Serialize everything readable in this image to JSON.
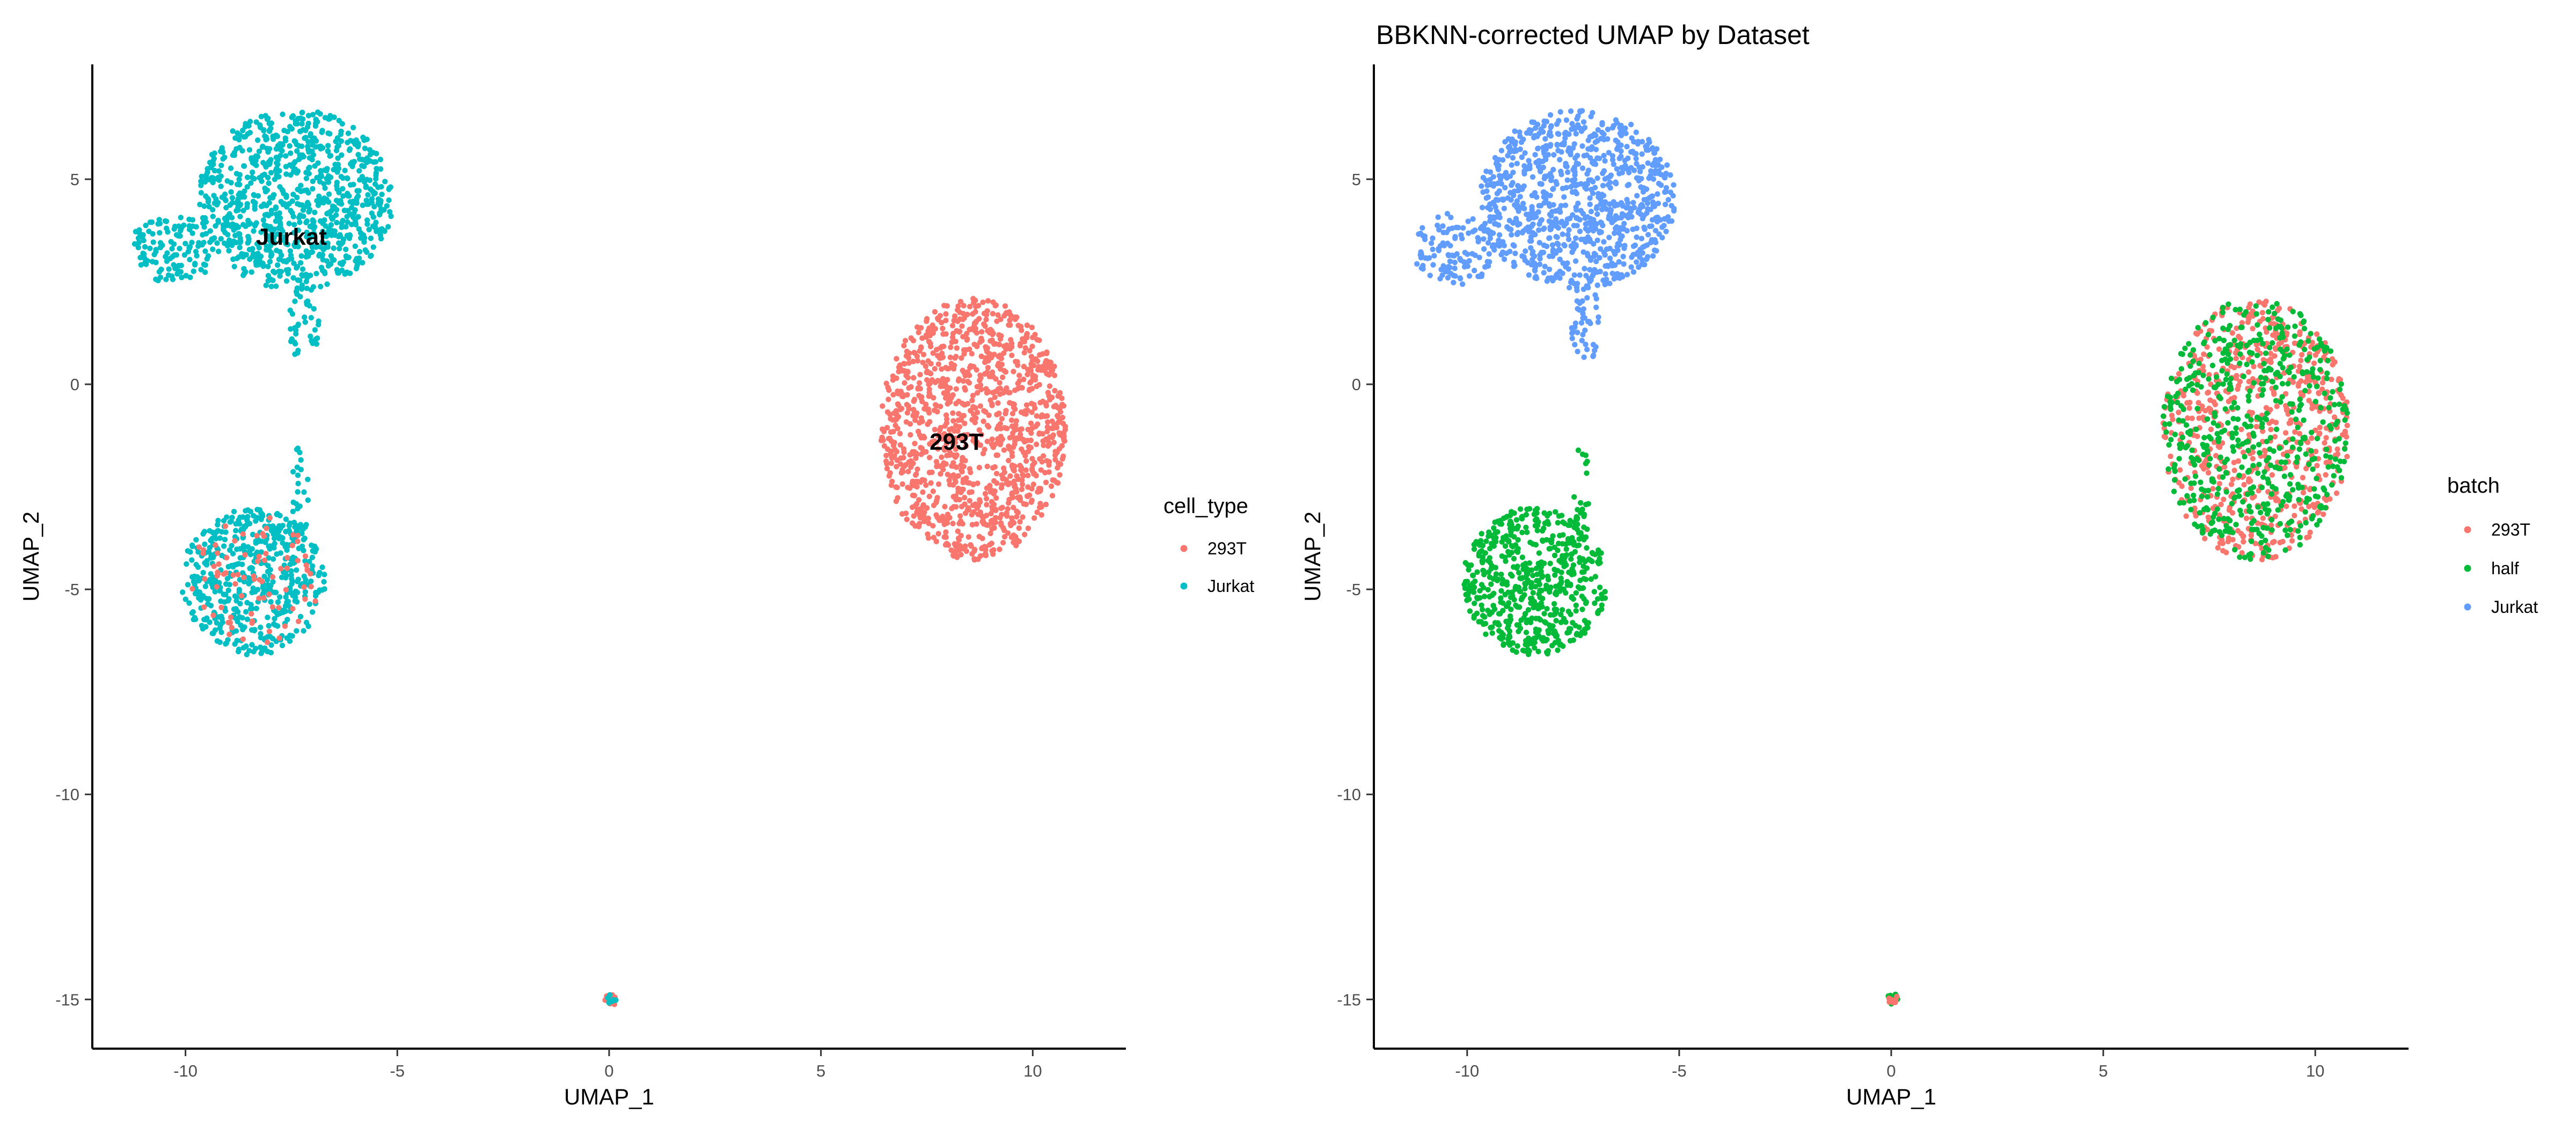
{
  "chart_data": [
    {
      "type": "scatter",
      "title": "",
      "xlabel": "UMAP_1",
      "ylabel": "UMAP_2",
      "xlim": [
        -12.2,
        12.2
      ],
      "ylim": [
        -16.2,
        7.8
      ],
      "xticks": [
        -10,
        -5,
        0,
        5,
        10
      ],
      "yticks": [
        -15,
        -10,
        -5,
        0,
        5
      ],
      "grid": false,
      "legend": {
        "title": "cell_type",
        "placement": "right",
        "entries": [
          {
            "label": "293T",
            "color": "#F8766D"
          },
          {
            "label": "Jurkat",
            "color": "#00BFC4"
          }
        ]
      },
      "cluster_labels": [
        {
          "text": "Jurkat",
          "x": -7.5,
          "y": 3.6
        },
        {
          "text": "293T",
          "x": 8.2,
          "y": -1.4
        }
      ],
      "clusters": [
        {
          "series": "Jurkat",
          "center": [
            -7.4,
            4.5
          ],
          "radius": [
            2.3,
            2.2
          ],
          "count": 900
        },
        {
          "series": "Jurkat",
          "center": [
            -10.3,
            3.3
          ],
          "radius": [
            1.0,
            0.9
          ],
          "count": 120
        },
        {
          "series": "Jurkat",
          "center": [
            -7.2,
            1.5
          ],
          "radius": [
            0.35,
            1.0
          ],
          "count": 40
        },
        {
          "series": "Jurkat",
          "center": [
            -8.4,
            -4.8
          ],
          "radius": [
            1.7,
            1.8
          ],
          "count": 500
        },
        {
          "series": "293T",
          "center": [
            -8.4,
            -4.8
          ],
          "radius": [
            1.6,
            1.7
          ],
          "count": 80
        },
        {
          "series": "Jurkat",
          "center": [
            -7.3,
            -2.8
          ],
          "radius": [
            0.2,
            1.3
          ],
          "count": 25
        },
        {
          "series": "293T",
          "center": [
            8.6,
            -1.1
          ],
          "radius": [
            2.2,
            3.2
          ],
          "count": 1200
        },
        {
          "series": "293T",
          "center": [
            0.05,
            -15.0
          ],
          "radius": [
            0.15,
            0.15
          ],
          "count": 15
        },
        {
          "series": "Jurkat",
          "center": [
            0.05,
            -15.0
          ],
          "radius": [
            0.12,
            0.12
          ],
          "count": 6
        }
      ]
    },
    {
      "type": "scatter",
      "title": "BBKNN-corrected UMAP by Dataset",
      "xlabel": "UMAP_1",
      "ylabel": "UMAP_2",
      "xlim": [
        -12.2,
        12.2
      ],
      "ylim": [
        -16.2,
        7.8
      ],
      "xticks": [
        -10,
        -5,
        0,
        5,
        10
      ],
      "yticks": [
        -15,
        -10,
        -5,
        0,
        5
      ],
      "grid": false,
      "legend": {
        "title": "batch",
        "placement": "right",
        "entries": [
          {
            "label": "293T",
            "color": "#F8766D"
          },
          {
            "label": "half",
            "color": "#00BA38"
          },
          {
            "label": "Jurkat",
            "color": "#619CFF"
          }
        ]
      },
      "cluster_labels": [],
      "clusters": [
        {
          "series": "Jurkat",
          "center": [
            -7.4,
            4.5
          ],
          "radius": [
            2.3,
            2.2
          ],
          "count": 900
        },
        {
          "series": "Jurkat",
          "center": [
            -10.3,
            3.3
          ],
          "radius": [
            1.0,
            0.9
          ],
          "count": 120
        },
        {
          "series": "Jurkat",
          "center": [
            -7.2,
            1.5
          ],
          "radius": [
            0.35,
            1.0
          ],
          "count": 40
        },
        {
          "series": "half",
          "center": [
            -8.4,
            -4.8
          ],
          "radius": [
            1.7,
            1.8
          ],
          "count": 580
        },
        {
          "series": "half",
          "center": [
            -7.3,
            -2.8
          ],
          "radius": [
            0.2,
            1.3
          ],
          "count": 25
        },
        {
          "series": "293T",
          "center": [
            8.6,
            -1.1
          ],
          "radius": [
            2.2,
            3.2
          ],
          "count": 650
        },
        {
          "series": "half",
          "center": [
            8.6,
            -1.1
          ],
          "radius": [
            2.2,
            3.2
          ],
          "count": 550
        },
        {
          "series": "half",
          "center": [
            0.05,
            -15.0
          ],
          "radius": [
            0.15,
            0.15
          ],
          "count": 10
        },
        {
          "series": "293T",
          "center": [
            0.05,
            -15.0
          ],
          "radius": [
            0.12,
            0.12
          ],
          "count": 8
        }
      ]
    }
  ]
}
